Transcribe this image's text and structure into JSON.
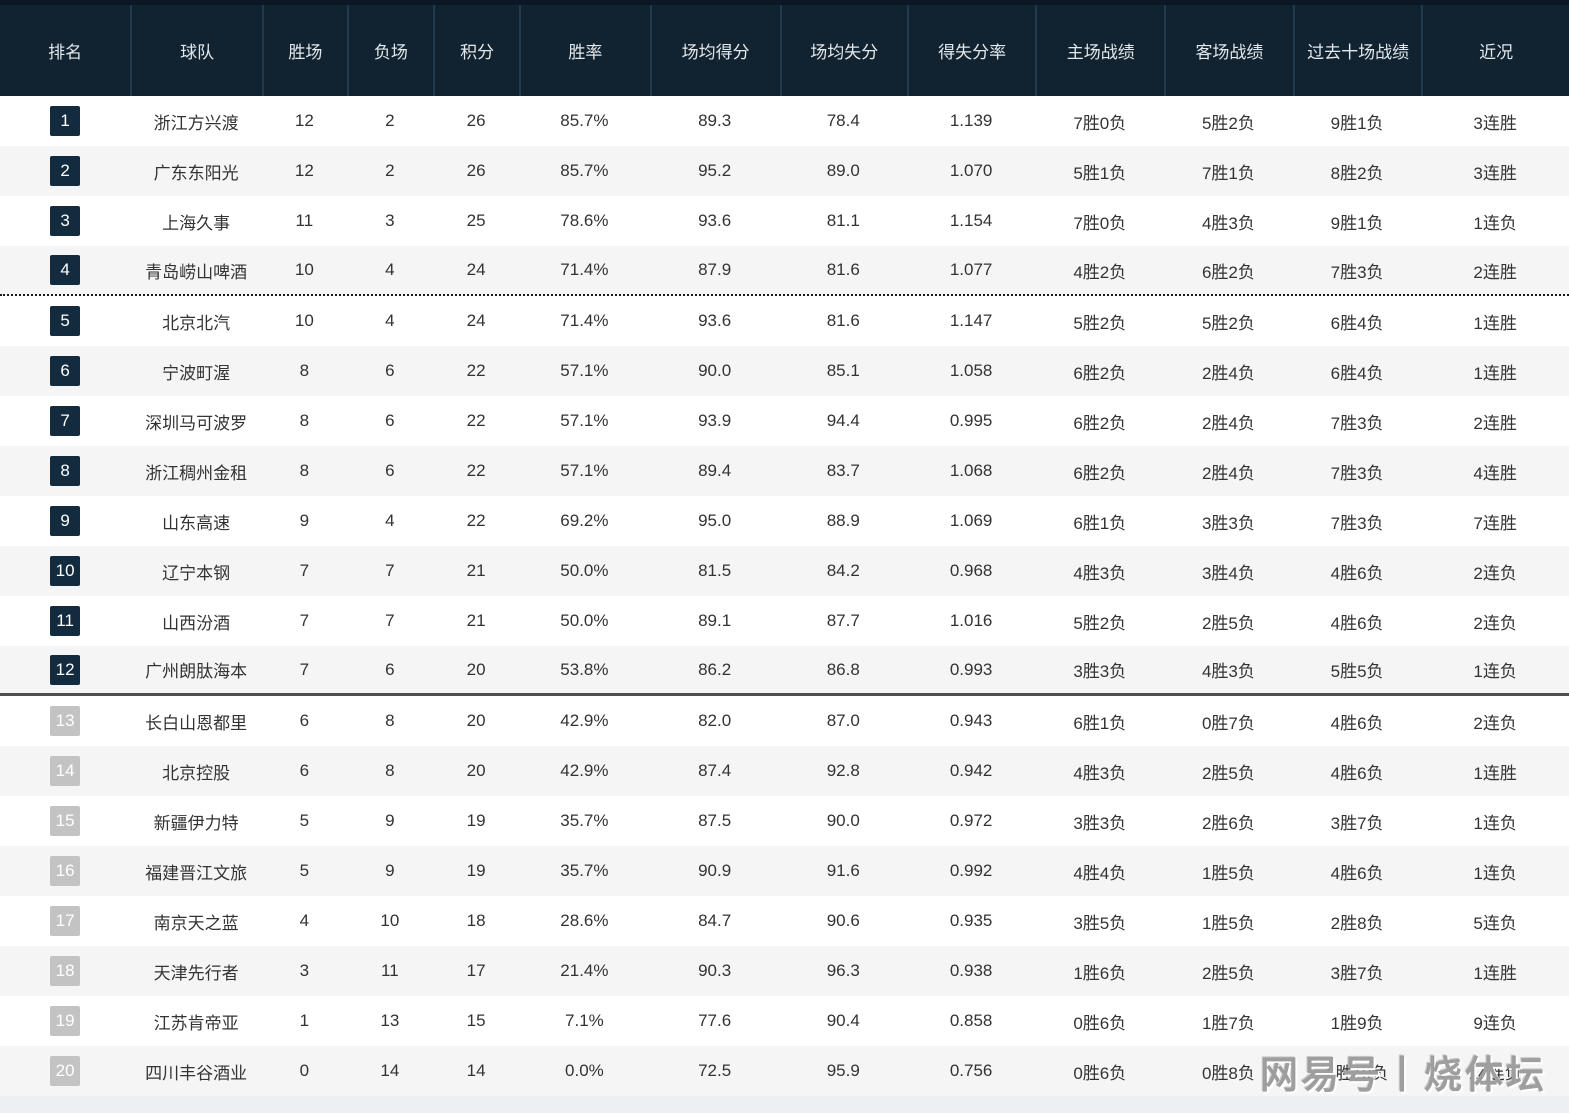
{
  "table": {
    "columns": [
      "排名",
      "球队",
      "胜场",
      "负场",
      "积分",
      "胜率",
      "场均得分",
      "场均失分",
      "得失分率",
      "主场战绩",
      "客场战绩",
      "过去十场战绩",
      "近况"
    ],
    "rows": [
      {
        "rank": "1",
        "team": "浙江方兴渡",
        "wins": "12",
        "losses": "2",
        "points": "26",
        "win_pct": "85.7%",
        "pts_for": "89.3",
        "pts_against": "78.4",
        "ratio": "1.139",
        "home": "7胜0负",
        "away": "5胜2负",
        "last10": "9胜1负",
        "streak": "3连胜"
      },
      {
        "rank": "2",
        "team": "广东东阳光",
        "wins": "12",
        "losses": "2",
        "points": "26",
        "win_pct": "85.7%",
        "pts_for": "95.2",
        "pts_against": "89.0",
        "ratio": "1.070",
        "home": "5胜1负",
        "away": "7胜1负",
        "last10": "8胜2负",
        "streak": "3连胜"
      },
      {
        "rank": "3",
        "team": "上海久事",
        "wins": "11",
        "losses": "3",
        "points": "25",
        "win_pct": "78.6%",
        "pts_for": "93.6",
        "pts_against": "81.1",
        "ratio": "1.154",
        "home": "7胜0负",
        "away": "4胜3负",
        "last10": "9胜1负",
        "streak": "1连负"
      },
      {
        "rank": "4",
        "team": "青岛崂山啤酒",
        "wins": "10",
        "losses": "4",
        "points": "24",
        "win_pct": "71.4%",
        "pts_for": "87.9",
        "pts_against": "81.6",
        "ratio": "1.077",
        "home": "4胜2负",
        "away": "6胜2负",
        "last10": "7胜3负",
        "streak": "2连胜"
      },
      {
        "rank": "5",
        "team": "北京北汽",
        "wins": "10",
        "losses": "4",
        "points": "24",
        "win_pct": "71.4%",
        "pts_for": "93.6",
        "pts_against": "81.6",
        "ratio": "1.147",
        "home": "5胜2负",
        "away": "5胜2负",
        "last10": "6胜4负",
        "streak": "1连胜"
      },
      {
        "rank": "6",
        "team": "宁波町渥",
        "wins": "8",
        "losses": "6",
        "points": "22",
        "win_pct": "57.1%",
        "pts_for": "90.0",
        "pts_against": "85.1",
        "ratio": "1.058",
        "home": "6胜2负",
        "away": "2胜4负",
        "last10": "6胜4负",
        "streak": "1连胜"
      },
      {
        "rank": "7",
        "team": "深圳马可波罗",
        "wins": "8",
        "losses": "6",
        "points": "22",
        "win_pct": "57.1%",
        "pts_for": "93.9",
        "pts_against": "94.4",
        "ratio": "0.995",
        "home": "6胜2负",
        "away": "2胜4负",
        "last10": "7胜3负",
        "streak": "2连胜"
      },
      {
        "rank": "8",
        "team": "浙江稠州金租",
        "wins": "8",
        "losses": "6",
        "points": "22",
        "win_pct": "57.1%",
        "pts_for": "89.4",
        "pts_against": "83.7",
        "ratio": "1.068",
        "home": "6胜2负",
        "away": "2胜4负",
        "last10": "7胜3负",
        "streak": "4连胜"
      },
      {
        "rank": "9",
        "team": "山东高速",
        "wins": "9",
        "losses": "4",
        "points": "22",
        "win_pct": "69.2%",
        "pts_for": "95.0",
        "pts_against": "88.9",
        "ratio": "1.069",
        "home": "6胜1负",
        "away": "3胜3负",
        "last10": "7胜3负",
        "streak": "7连胜"
      },
      {
        "rank": "10",
        "team": "辽宁本钢",
        "wins": "7",
        "losses": "7",
        "points": "21",
        "win_pct": "50.0%",
        "pts_for": "81.5",
        "pts_against": "84.2",
        "ratio": "0.968",
        "home": "4胜3负",
        "away": "3胜4负",
        "last10": "4胜6负",
        "streak": "2连负"
      },
      {
        "rank": "11",
        "team": "山西汾酒",
        "wins": "7",
        "losses": "7",
        "points": "21",
        "win_pct": "50.0%",
        "pts_for": "89.1",
        "pts_against": "87.7",
        "ratio": "1.016",
        "home": "5胜2负",
        "away": "2胜5负",
        "last10": "4胜6负",
        "streak": "2连负"
      },
      {
        "rank": "12",
        "team": "广州朗肽海本",
        "wins": "7",
        "losses": "6",
        "points": "20",
        "win_pct": "53.8%",
        "pts_for": "86.2",
        "pts_against": "86.8",
        "ratio": "0.993",
        "home": "3胜3负",
        "away": "4胜3负",
        "last10": "5胜5负",
        "streak": "1连负"
      },
      {
        "rank": "13",
        "team": "长白山恩都里",
        "wins": "6",
        "losses": "8",
        "points": "20",
        "win_pct": "42.9%",
        "pts_for": "82.0",
        "pts_against": "87.0",
        "ratio": "0.943",
        "home": "6胜1负",
        "away": "0胜7负",
        "last10": "4胜6负",
        "streak": "2连负"
      },
      {
        "rank": "14",
        "team": "北京控股",
        "wins": "6",
        "losses": "8",
        "points": "20",
        "win_pct": "42.9%",
        "pts_for": "87.4",
        "pts_against": "92.8",
        "ratio": "0.942",
        "home": "4胜3负",
        "away": "2胜5负",
        "last10": "4胜6负",
        "streak": "1连胜"
      },
      {
        "rank": "15",
        "team": "新疆伊力特",
        "wins": "5",
        "losses": "9",
        "points": "19",
        "win_pct": "35.7%",
        "pts_for": "87.5",
        "pts_against": "90.0",
        "ratio": "0.972",
        "home": "3胜3负",
        "away": "2胜6负",
        "last10": "3胜7负",
        "streak": "1连负"
      },
      {
        "rank": "16",
        "team": "福建晋江文旅",
        "wins": "5",
        "losses": "9",
        "points": "19",
        "win_pct": "35.7%",
        "pts_for": "90.9",
        "pts_against": "91.6",
        "ratio": "0.992",
        "home": "4胜4负",
        "away": "1胜5负",
        "last10": "4胜6负",
        "streak": "1连负"
      },
      {
        "rank": "17",
        "team": "南京天之蓝",
        "wins": "4",
        "losses": "10",
        "points": "18",
        "win_pct": "28.6%",
        "pts_for": "84.7",
        "pts_against": "90.6",
        "ratio": "0.935",
        "home": "3胜5负",
        "away": "1胜5负",
        "last10": "2胜8负",
        "streak": "5连负"
      },
      {
        "rank": "18",
        "team": "天津先行者",
        "wins": "3",
        "losses": "11",
        "points": "17",
        "win_pct": "21.4%",
        "pts_for": "90.3",
        "pts_against": "96.3",
        "ratio": "0.938",
        "home": "1胜6负",
        "away": "2胜5负",
        "last10": "3胜7负",
        "streak": "1连胜"
      },
      {
        "rank": "19",
        "team": "江苏肯帝亚",
        "wins": "1",
        "losses": "13",
        "points": "15",
        "win_pct": "7.1%",
        "pts_for": "77.6",
        "pts_against": "90.4",
        "ratio": "0.858",
        "home": "0胜6负",
        "away": "1胜7负",
        "last10": "1胜9负",
        "streak": "9连负"
      },
      {
        "rank": "20",
        "team": "四川丰谷酒业",
        "wins": "0",
        "losses": "14",
        "points": "14",
        "win_pct": "0.0%",
        "pts_for": "72.5",
        "pts_against": "95.9",
        "ratio": "0.756",
        "home": "0胜6负",
        "away": "0胜8负",
        "last10": "0胜10负",
        "streak": "14连负"
      }
    ],
    "separators": {
      "dotted_after_rank": 4,
      "solid_after_rank": 12
    },
    "navy_badge_max_rank": 12
  },
  "watermark": "网易号丨烧体坛",
  "colors": {
    "header_bg": "#112331",
    "header_outer": "#0a1925",
    "header_text": "#e3e8ec",
    "badge_navy": "#132b3e",
    "badge_gray": "#c3c3c3",
    "row_alt": "#f5f5f6",
    "body_text": "#333333",
    "watermark_gray": "#9e9e9e"
  }
}
